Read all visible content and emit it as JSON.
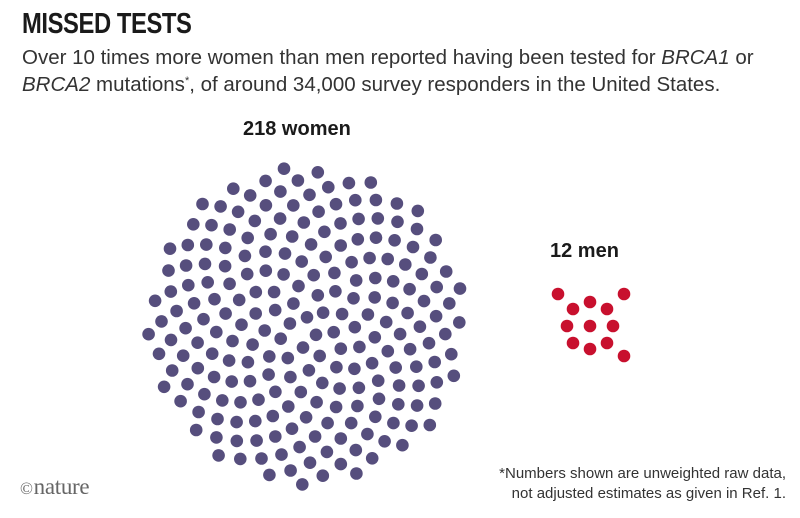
{
  "header": {
    "title": "MISSED TESTS",
    "subtitle_parts": [
      {
        "text": "Over 10 times more women than men reported having been tested for "
      },
      {
        "text": "BRCA1",
        "style": "italic"
      },
      {
        "text": " or "
      },
      {
        "text": "BRCA2",
        "style": "italic"
      },
      {
        "text": " mutations"
      },
      {
        "text": "*",
        "style": "superscript"
      },
      {
        "text": ", of around 34,000 survey responders in the United States."
      }
    ]
  },
  "chart_data": {
    "type": "dot-cluster",
    "groups": [
      {
        "label": "218 women",
        "count": 218,
        "color": "#564e7d"
      },
      {
        "label": "12 men",
        "count": 12,
        "color": "#c8102e"
      }
    ]
  },
  "footnote": {
    "line1": "*Numbers shown are unweighted raw data,",
    "line2": "not adjusted estimates as given in Ref. 1."
  },
  "brand": {
    "copyright_symbol": "©",
    "name": "nature"
  }
}
